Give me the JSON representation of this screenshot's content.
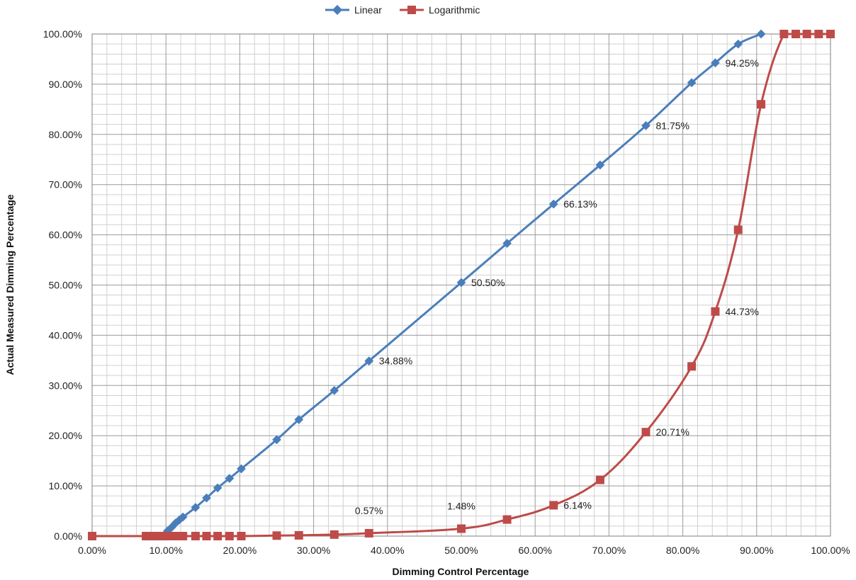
{
  "chart_data": {
    "type": "line",
    "title": "",
    "xlabel": "Dimming Control Percentage",
    "ylabel": "Actual Measured Dimming Percentage",
    "xlim": [
      0,
      100
    ],
    "ylim": [
      0,
      100
    ],
    "x_ticks": [
      "0.00%",
      "10.00%",
      "20.00%",
      "30.00%",
      "40.00%",
      "50.00%",
      "60.00%",
      "70.00%",
      "80.00%",
      "90.00%",
      "100.00%"
    ],
    "y_ticks": [
      "0.00%",
      "10.00%",
      "20.00%",
      "30.00%",
      "40.00%",
      "50.00%",
      "60.00%",
      "70.00%",
      "80.00%",
      "90.00%",
      "100.00%"
    ],
    "grid": true,
    "legend_position": "top-center",
    "series": [
      {
        "name": "Linear",
        "color": "#4A7EBB",
        "marker": "diamond",
        "points": [
          [
            0,
            0
          ],
          [
            7.3,
            0
          ],
          [
            7.8,
            0
          ],
          [
            8.3,
            0
          ],
          [
            8.8,
            0
          ],
          [
            9.3,
            0
          ],
          [
            9.8,
            0
          ],
          [
            10.2,
            1.0
          ],
          [
            10.8,
            1.8
          ],
          [
            11.3,
            2.6
          ],
          [
            11.8,
            3.2
          ],
          [
            12.3,
            3.8
          ],
          [
            14.0,
            5.7
          ],
          [
            15.5,
            7.6
          ],
          [
            17.0,
            9.6
          ],
          [
            18.6,
            11.5
          ],
          [
            20.2,
            13.4
          ],
          [
            25.0,
            19.2
          ],
          [
            28.0,
            23.2
          ],
          [
            32.8,
            29.0
          ],
          [
            37.5,
            34.88
          ],
          [
            50.0,
            50.5
          ],
          [
            56.2,
            58.3
          ],
          [
            62.5,
            66.13
          ],
          [
            68.8,
            73.9
          ],
          [
            75.0,
            81.75
          ],
          [
            81.2,
            90.3
          ],
          [
            84.4,
            94.25
          ],
          [
            87.5,
            98.0
          ],
          [
            90.6,
            100.0
          ]
        ]
      },
      {
        "name": "Logarithmic",
        "color": "#BE4B48",
        "marker": "square",
        "points": [
          [
            0,
            0
          ],
          [
            7.3,
            0
          ],
          [
            7.8,
            0
          ],
          [
            8.3,
            0
          ],
          [
            8.8,
            0
          ],
          [
            9.3,
            0
          ],
          [
            9.8,
            0
          ],
          [
            10.2,
            0
          ],
          [
            10.8,
            0
          ],
          [
            11.3,
            0
          ],
          [
            11.8,
            0
          ],
          [
            12.3,
            0
          ],
          [
            14.0,
            0
          ],
          [
            15.5,
            0
          ],
          [
            17.0,
            0
          ],
          [
            18.6,
            0
          ],
          [
            20.2,
            0
          ],
          [
            25.0,
            0.1
          ],
          [
            28.0,
            0.15
          ],
          [
            32.8,
            0.3
          ],
          [
            37.5,
            0.57
          ],
          [
            50.0,
            1.48
          ],
          [
            56.2,
            3.3
          ],
          [
            62.5,
            6.14
          ],
          [
            68.8,
            11.2
          ],
          [
            75.0,
            20.71
          ],
          [
            81.2,
            33.8
          ],
          [
            84.4,
            44.73
          ],
          [
            87.5,
            61.0
          ],
          [
            90.6,
            86.0
          ],
          [
            93.7,
            100
          ],
          [
            95.3,
            100
          ],
          [
            96.8,
            100
          ],
          [
            98.4,
            100
          ],
          [
            100.0,
            100
          ]
        ]
      }
    ],
    "annotations": [
      {
        "series": "Linear",
        "x": 37.5,
        "y": 34.88,
        "text": "34.88%",
        "pos": "right"
      },
      {
        "series": "Linear",
        "x": 50.0,
        "y": 50.5,
        "text": "50.50%",
        "pos": "right"
      },
      {
        "series": "Linear",
        "x": 62.5,
        "y": 66.13,
        "text": "66.13%",
        "pos": "right"
      },
      {
        "series": "Linear",
        "x": 75.0,
        "y": 81.75,
        "text": "81.75%",
        "pos": "right"
      },
      {
        "series": "Linear",
        "x": 84.4,
        "y": 94.25,
        "text": "94.25%",
        "pos": "right"
      },
      {
        "series": "Logarithmic",
        "x": 37.5,
        "y": 0.57,
        "text": "0.57%",
        "pos": "above"
      },
      {
        "series": "Logarithmic",
        "x": 50.0,
        "y": 1.48,
        "text": "1.48%",
        "pos": "above"
      },
      {
        "series": "Logarithmic",
        "x": 62.5,
        "y": 6.14,
        "text": "6.14%",
        "pos": "right"
      },
      {
        "series": "Logarithmic",
        "x": 75.0,
        "y": 20.71,
        "text": "20.71%",
        "pos": "right"
      },
      {
        "series": "Logarithmic",
        "x": 84.4,
        "y": 44.73,
        "text": "44.73%",
        "pos": "right"
      }
    ]
  }
}
